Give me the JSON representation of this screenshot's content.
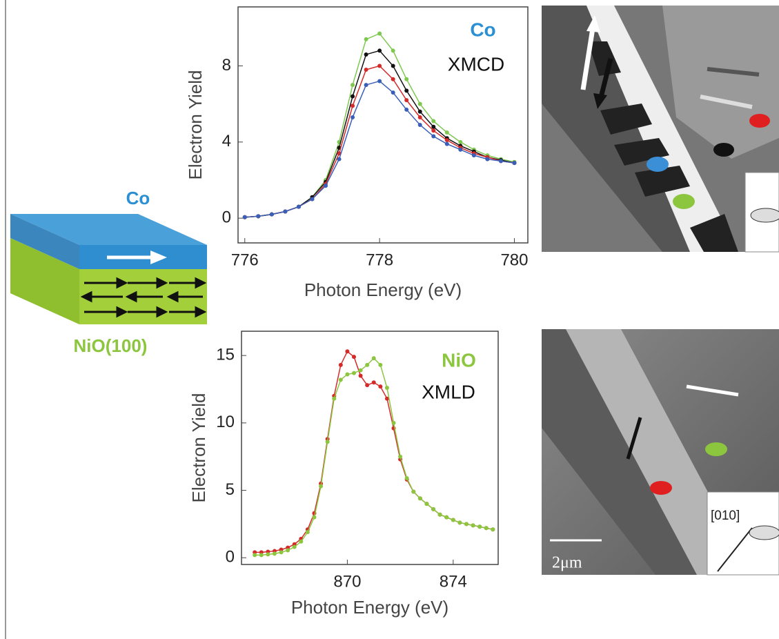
{
  "chart_data": [
    {
      "type": "line",
      "x_label": "Photon Energy (eV)",
      "y_label": "Electron Yield",
      "annotations": [
        {
          "text": "Co",
          "color": "#2b8fd3"
        },
        {
          "text": "XMCD",
          "color": "#111111"
        }
      ],
      "x": [
        776,
        776.2,
        776.4,
        776.6,
        776.8,
        777,
        777.2,
        777.4,
        777.6,
        777.8,
        778,
        778.2,
        778.4,
        778.6,
        778.8,
        779,
        779.2,
        779.4,
        779.6,
        779.8,
        780
      ],
      "series": [
        {
          "color": "#7ec850",
          "values": [
            0.05,
            0.1,
            0.2,
            0.35,
            0.6,
            1.1,
            2.0,
            4.0,
            7.0,
            9.4,
            9.7,
            8.8,
            7.3,
            6.0,
            5.1,
            4.5,
            4.0,
            3.6,
            3.3,
            3.1,
            2.95
          ]
        },
        {
          "color": "#111111",
          "values": [
            0.05,
            0.1,
            0.2,
            0.35,
            0.6,
            1.1,
            1.9,
            3.7,
            6.4,
            8.6,
            8.8,
            8.0,
            6.7,
            5.6,
            4.8,
            4.2,
            3.8,
            3.5,
            3.2,
            3.05,
            2.9
          ]
        },
        {
          "color": "#d42a2a",
          "values": [
            0.05,
            0.1,
            0.2,
            0.35,
            0.6,
            1.0,
            1.8,
            3.4,
            5.9,
            7.8,
            8.0,
            7.3,
            6.2,
            5.3,
            4.6,
            4.1,
            3.7,
            3.4,
            3.2,
            3.0,
            2.9
          ]
        },
        {
          "color": "#3a5fb8",
          "values": [
            0.05,
            0.1,
            0.2,
            0.35,
            0.6,
            1.0,
            1.7,
            3.1,
            5.3,
            7.0,
            7.2,
            6.6,
            5.7,
            4.9,
            4.3,
            3.9,
            3.6,
            3.3,
            3.1,
            3.0,
            2.9
          ]
        }
      ],
      "xlim": [
        775.9,
        780.2
      ],
      "ylim": [
        -1.3,
        11.1
      ],
      "xticks": [
        776,
        778,
        780
      ],
      "yticks": [
        0,
        4,
        8
      ]
    },
    {
      "type": "line",
      "x_label": "Photon Energy (eV)",
      "y_label": "Electron Yield",
      "annotations": [
        {
          "text": "NiO",
          "color": "#8cc63f"
        },
        {
          "text": "XMLD",
          "color": "#111111"
        }
      ],
      "x": [
        866.5,
        866.75,
        867,
        867.25,
        867.5,
        867.75,
        868,
        868.25,
        868.5,
        868.75,
        869,
        869.25,
        869.5,
        869.75,
        870,
        870.25,
        870.5,
        870.75,
        871,
        871.25,
        871.5,
        871.75,
        872,
        872.25,
        872.5,
        872.75,
        873,
        873.25,
        873.5,
        873.75,
        874,
        874.25,
        874.5,
        874.75,
        875,
        875.25,
        875.5
      ],
      "series": [
        {
          "color": "#d42a2a",
          "values": [
            0.4,
            0.4,
            0.45,
            0.5,
            0.6,
            0.75,
            1.0,
            1.4,
            2.1,
            3.3,
            5.5,
            8.8,
            12.0,
            14.3,
            15.3,
            14.9,
            13.5,
            12.8,
            13.0,
            12.7,
            11.8,
            9.6,
            7.3,
            5.8,
            4.9,
            4.4,
            4.0,
            3.6,
            3.2,
            3.0,
            2.8,
            2.6,
            2.5,
            2.4,
            2.3,
            2.2,
            2.1
          ]
        },
        {
          "color": "#8cc63f",
          "values": [
            0.2,
            0.2,
            0.25,
            0.3,
            0.4,
            0.55,
            0.8,
            1.2,
            1.9,
            3.0,
            5.3,
            8.6,
            11.8,
            13.2,
            13.6,
            13.7,
            13.9,
            14.3,
            14.8,
            14.3,
            12.6,
            10.0,
            7.5,
            5.9,
            4.9,
            4.4,
            4.0,
            3.6,
            3.2,
            3.0,
            2.8,
            2.6,
            2.5,
            2.4,
            2.3,
            2.2,
            2.1
          ]
        }
      ],
      "xlim": [
        866.0,
        875.7
      ],
      "ylim": [
        -0.5,
        16.8
      ],
      "xticks": [
        870,
        874
      ],
      "yticks": [
        0,
        5,
        10,
        15
      ]
    }
  ],
  "diagram": {
    "top_label": "Co",
    "bottom_label": "NiO(100)"
  },
  "images": {
    "scale_bar": "2μm",
    "direction": "[010]"
  }
}
